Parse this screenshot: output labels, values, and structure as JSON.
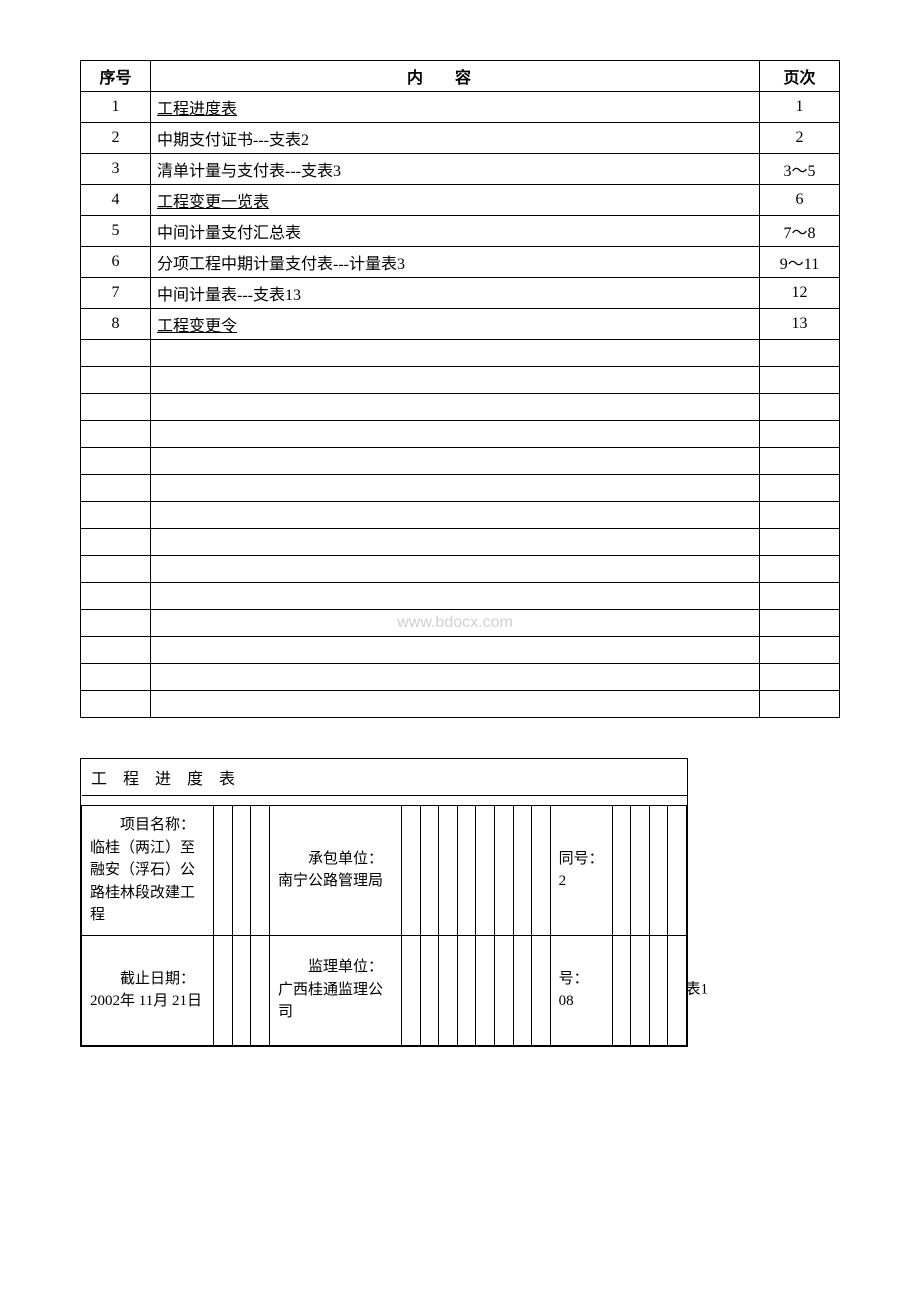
{
  "table_of_contents": {
    "headers": {
      "seq": "序号",
      "content_left": "内",
      "content_right": "容",
      "page": "页次"
    },
    "rows": [
      {
        "seq": "1",
        "content": "工程进度表",
        "page": "1",
        "underline": true
      },
      {
        "seq": "2",
        "content": "中期支付证书---支表2",
        "page": "2",
        "underline": false
      },
      {
        "seq": "3",
        "content": "清单计量与支付表---支表3",
        "page": "3～5",
        "underline": false
      },
      {
        "seq": "4",
        "content": "工程变更一览表",
        "page": "6",
        "underline": true
      },
      {
        "seq": "5",
        "content": "中间计量支付汇总表",
        "page": "7～8",
        "underline": false
      },
      {
        "seq": "6",
        "content": "分项工程中期计量支付表---计量表3",
        "page": "9～11",
        "underline": false
      },
      {
        "seq": "7",
        "content": "中间计量表---支表13",
        "page": "12",
        "underline": false
      },
      {
        "seq": "8",
        "content": "工程变更令",
        "page": "13",
        "underline": true
      }
    ],
    "empty_rows_count": 14,
    "watermark_text": "www.bdocx.com",
    "watermark_row_index": 10
  },
  "progress_table": {
    "title": "工 程 进 度 表",
    "row1": {
      "project_label": "项目名称：",
      "project_value": "临桂（两江）至融安（浮石）公路桂林段改建工程",
      "contractor_label": "承包单位：",
      "contractor_value": "南宁公路管理局",
      "contract_label": "同号：",
      "contract_value": "2"
    },
    "row2": {
      "date_label": "截止日期：",
      "date_value": "2002年 11月 21日",
      "supervisor_label": "监理单位：",
      "supervisor_value": "广西桂通监理公司",
      "num_label": "号：",
      "num_value": "08",
      "outside": "表1"
    }
  }
}
